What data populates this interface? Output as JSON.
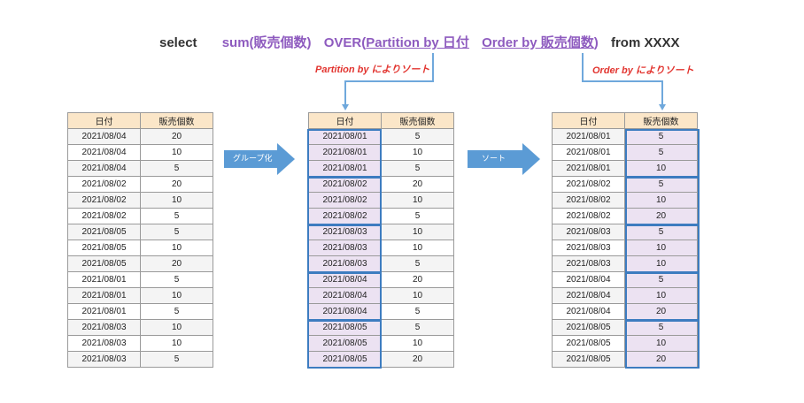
{
  "query": {
    "select": "select",
    "sum": "sum(販売個数)",
    "over": "OVER(",
    "partition": "Partition by 日付",
    "order": "Order by  販売個数",
    "close": ")",
    "from": "from  XXXX"
  },
  "annotations": {
    "partition_label": "Partition by によりソート",
    "order_label": "Order by によりソート"
  },
  "arrows": {
    "group": "グループ化",
    "sort": "ソート"
  },
  "colors": {
    "keyword_purple": "#8e5bbf",
    "annotation_red": "#e2342f",
    "arrow_blue": "#5b9bd5",
    "header_bg": "#fbe6c8",
    "group_highlight": "#ece2f2",
    "group_border": "#3d7cc0"
  },
  "tables": {
    "headers": [
      "日付",
      "販売個数"
    ],
    "original": [
      [
        "2021/08/04",
        "20"
      ],
      [
        "2021/08/04",
        "10"
      ],
      [
        "2021/08/04",
        "5"
      ],
      [
        "2021/08/02",
        "20"
      ],
      [
        "2021/08/02",
        "10"
      ],
      [
        "2021/08/02",
        "5"
      ],
      [
        "2021/08/05",
        "5"
      ],
      [
        "2021/08/05",
        "10"
      ],
      [
        "2021/08/05",
        "20"
      ],
      [
        "2021/08/01",
        "5"
      ],
      [
        "2021/08/01",
        "10"
      ],
      [
        "2021/08/01",
        "5"
      ],
      [
        "2021/08/03",
        "10"
      ],
      [
        "2021/08/03",
        "10"
      ],
      [
        "2021/08/03",
        "5"
      ]
    ],
    "partitioned": [
      [
        "2021/08/01",
        "5"
      ],
      [
        "2021/08/01",
        "10"
      ],
      [
        "2021/08/01",
        "5"
      ],
      [
        "2021/08/02",
        "20"
      ],
      [
        "2021/08/02",
        "10"
      ],
      [
        "2021/08/02",
        "5"
      ],
      [
        "2021/08/03",
        "10"
      ],
      [
        "2021/08/03",
        "10"
      ],
      [
        "2021/08/03",
        "5"
      ],
      [
        "2021/08/04",
        "20"
      ],
      [
        "2021/08/04",
        "10"
      ],
      [
        "2021/08/04",
        "5"
      ],
      [
        "2021/08/05",
        "5"
      ],
      [
        "2021/08/05",
        "10"
      ],
      [
        "2021/08/05",
        "20"
      ]
    ],
    "ordered": [
      [
        "2021/08/01",
        "5"
      ],
      [
        "2021/08/01",
        "5"
      ],
      [
        "2021/08/01",
        "10"
      ],
      [
        "2021/08/02",
        "5"
      ],
      [
        "2021/08/02",
        "10"
      ],
      [
        "2021/08/02",
        "20"
      ],
      [
        "2021/08/03",
        "5"
      ],
      [
        "2021/08/03",
        "10"
      ],
      [
        "2021/08/03",
        "10"
      ],
      [
        "2021/08/04",
        "5"
      ],
      [
        "2021/08/04",
        "10"
      ],
      [
        "2021/08/04",
        "20"
      ],
      [
        "2021/08/05",
        "5"
      ],
      [
        "2021/08/05",
        "10"
      ],
      [
        "2021/08/05",
        "20"
      ]
    ]
  }
}
